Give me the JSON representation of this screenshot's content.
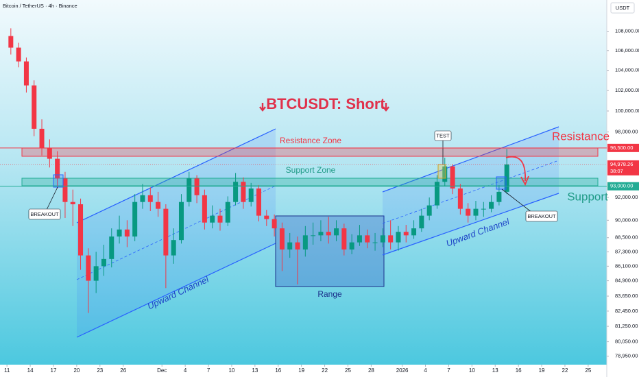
{
  "chart_data": {
    "type": "candlestick",
    "title": "BTCUSDT: Short",
    "source": "Bitcoin / TetherUS · 4h · Binance",
    "currency": "USDT",
    "log_scale": true,
    "grid": false,
    "up_color": "#089981",
    "down_color": "#f23645",
    "x": [
      0.5,
      1.5,
      2.5,
      3.5,
      4.5,
      5.5,
      6.5,
      7.5,
      8.5,
      9.5,
      10.5,
      11.5,
      12.5,
      13.5,
      14.5,
      15.5,
      16.5,
      17.5,
      18.5,
      19.5,
      20.5,
      21.5,
      22.5,
      23.5,
      24.5,
      25.5,
      26.5,
      27.5,
      28.5,
      29.5,
      30.5,
      31.5,
      32.5,
      33.5,
      34.5,
      35.5,
      36.5,
      37.5,
      38.5,
      39.5,
      40.5,
      41.5,
      42.5,
      43.5,
      44.5,
      45.5,
      46.5,
      47.5,
      48.5,
      49.5,
      50.5,
      51.5,
      52.5,
      53.5,
      54.5,
      55.5,
      56.5,
      57.5,
      58.5,
      59.5,
      60.5,
      61.5,
      62.5,
      63.5,
      64.5
    ],
    "open": [
      107500,
      106300,
      104900,
      102500,
      98300,
      96500,
      95500,
      93700,
      91600,
      91400,
      87000,
      84900,
      86100,
      86700,
      88600,
      89200,
      88600,
      91600,
      92200,
      91600,
      91000,
      87000,
      88300,
      91600,
      93700,
      92200,
      89800,
      90400,
      89800,
      91600,
      93400,
      91600,
      92800,
      90400,
      90100,
      89300,
      87500,
      88100,
      87500,
      88700,
      88700,
      89000,
      88700,
      89300,
      87500,
      88100,
      88700,
      88100,
      88100,
      88700,
      88100,
      89000,
      88700,
      89300,
      90400,
      91300,
      93400,
      94800,
      92800,
      91000,
      90400,
      91000,
      91000,
      91600,
      92500
    ],
    "high": [
      108300,
      106800,
      105300,
      103000,
      99200,
      97300,
      96200,
      94300,
      92700,
      91900,
      87600,
      87300,
      87900,
      89300,
      90400,
      90000,
      92300,
      93200,
      92900,
      92500,
      91400,
      89300,
      92300,
      94300,
      94000,
      92700,
      91300,
      91000,
      92100,
      94200,
      93800,
      93300,
      93100,
      90900,
      90500,
      89800,
      88900,
      88600,
      89500,
      89800,
      90000,
      90300,
      90000,
      89700,
      88800,
      89600,
      89200,
      88900,
      89300,
      90000,
      89500,
      89600,
      90000,
      91000,
      92000,
      94000,
      95600,
      95000,
      93200,
      91500,
      91700,
      91600,
      92200,
      93100,
      96400
    ],
    "low": [
      105600,
      104300,
      101800,
      97600,
      95800,
      94700,
      92800,
      90200,
      89500,
      85800,
      82300,
      83900,
      85300,
      86000,
      88000,
      87700,
      88200,
      91000,
      90800,
      90300,
      84300,
      86300,
      88000,
      91200,
      91500,
      89200,
      89300,
      89100,
      89500,
      91300,
      91000,
      91200,
      89900,
      89500,
      88600,
      85700,
      86800,
      84600,
      86900,
      87900,
      88200,
      88000,
      88200,
      87000,
      87100,
      87800,
      87600,
      87400,
      87700,
      87500,
      87400,
      88100,
      88400,
      89000,
      90000,
      91000,
      93000,
      92300,
      90500,
      89800,
      90000,
      90300,
      90700,
      91300,
      92300
    ],
    "close": [
      106300,
      104900,
      102500,
      98300,
      96500,
      95500,
      93700,
      91600,
      91400,
      87000,
      84900,
      86100,
      86700,
      88600,
      89200,
      88600,
      91600,
      92200,
      91600,
      91000,
      87000,
      88300,
      91600,
      93700,
      92200,
      89800,
      90400,
      89800,
      91600,
      93400,
      91600,
      92800,
      90400,
      90100,
      89300,
      87500,
      88100,
      87500,
      88700,
      88700,
      89000,
      88700,
      89300,
      87500,
      88100,
      88700,
      88100,
      88100,
      88700,
      88100,
      89000,
      88700,
      89300,
      90400,
      91300,
      93400,
      94800,
      92800,
      91000,
      90400,
      91000,
      91000,
      91600,
      92500,
      94978.26
    ],
    "xlim": [
      -0.9,
      77.4
    ],
    "xticks": [
      {
        "value": 0,
        "label": "11"
      },
      {
        "value": 3,
        "label": "14"
      },
      {
        "value": 6,
        "label": "17"
      },
      {
        "value": 9,
        "label": "20"
      },
      {
        "value": 12,
        "label": "23"
      },
      {
        "value": 15,
        "label": "26"
      },
      {
        "value": 20,
        "label": "Dec"
      },
      {
        "value": 23,
        "label": "4"
      },
      {
        "value": 26,
        "label": "7"
      },
      {
        "value": 29,
        "label": "10"
      },
      {
        "value": 32,
        "label": "13"
      },
      {
        "value": 35,
        "label": "16"
      },
      {
        "value": 38,
        "label": "19"
      },
      {
        "value": 41,
        "label": "22"
      },
      {
        "value": 44,
        "label": "25"
      },
      {
        "value": 47,
        "label": "28"
      },
      {
        "value": 51,
        "label": "2026"
      },
      {
        "value": 54,
        "label": "4"
      },
      {
        "value": 57,
        "label": "7"
      },
      {
        "value": 60,
        "label": "10"
      },
      {
        "value": 63,
        "label": "13"
      },
      {
        "value": 66,
        "label": "16"
      },
      {
        "value": 69,
        "label": "19"
      },
      {
        "value": 72,
        "label": "22"
      },
      {
        "value": 75,
        "label": "25"
      }
    ],
    "ylim": [
      78300,
      111300
    ],
    "yticks": [
      {
        "value": 108000,
        "label": "108,000.00"
      },
      {
        "value": 106000,
        "label": "106,000.00"
      },
      {
        "value": 104000,
        "label": "104,000.00"
      },
      {
        "value": 102000,
        "label": "102,000.00"
      },
      {
        "value": 100000,
        "label": "100,000.00"
      },
      {
        "value": 98000,
        "label": "98,000.00"
      },
      {
        "value": 92000,
        "label": "92,000.00"
      },
      {
        "value": 90000,
        "label": "90,000.00"
      },
      {
        "value": 88500,
        "label": "88,500.00"
      },
      {
        "value": 87300,
        "label": "87,300.00"
      },
      {
        "value": 86100,
        "label": "86,100.00"
      },
      {
        "value": 84900,
        "label": "84,900.00"
      },
      {
        "value": 83650,
        "label": "83,650.00"
      },
      {
        "value": 82450,
        "label": "82,450.00"
      },
      {
        "value": 81250,
        "label": "81,250.00"
      },
      {
        "value": 80050,
        "label": "80,050.00"
      },
      {
        "value": 78950,
        "label": "78,950.00"
      }
    ],
    "levels": [
      {
        "value": 96500,
        "label": "96,500.00",
        "color": "#f23645"
      },
      {
        "value": 93000,
        "label": "93,000.00",
        "color": "#22ab94"
      }
    ],
    "last_price": {
      "value": 94978.26,
      "label": "94,978.26",
      "countdown": "38:07",
      "color": "#f23645"
    },
    "annotations": {
      "resistance_zone": "Resistance Zone",
      "support_zone": "Support Zone",
      "resistance": "Resistance",
      "support": "Support",
      "test": "TEST",
      "breakout_left": "BREAKOUT",
      "breakout_right": "BREAKOUT",
      "channel_left": "Upward Channel",
      "channel_right": "Upward Channel",
      "range": "Range"
    }
  }
}
